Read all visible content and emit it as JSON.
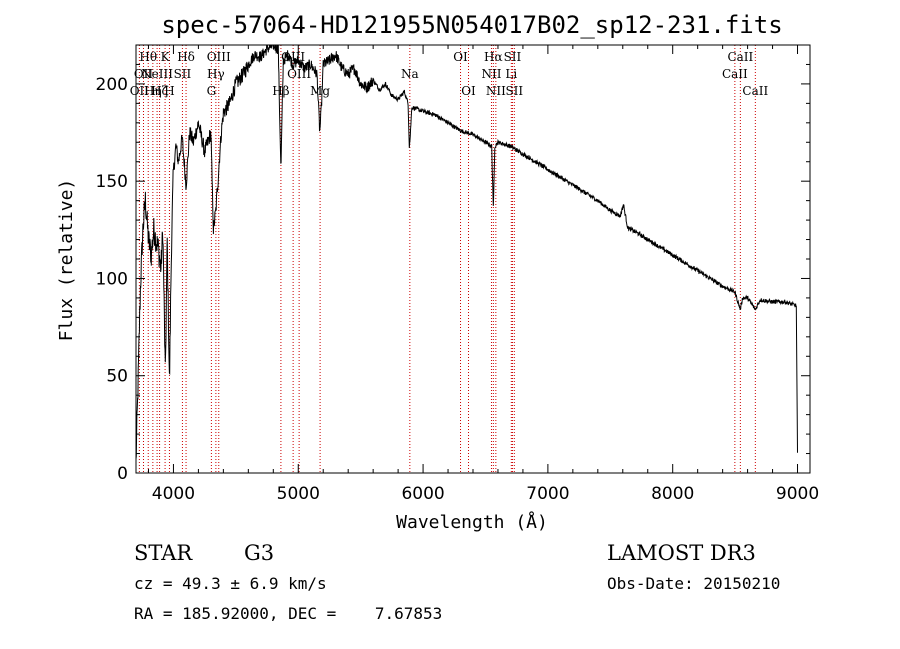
{
  "chart_data": {
    "type": "line",
    "title": "spec-57064-HD121955N054017B02_sp12-231.fits",
    "xlabel": "Wavelength (Å)",
    "ylabel": "Flux (relative)",
    "xlim": [
      3700,
      9100
    ],
    "ylim": [
      0,
      220
    ],
    "x_ticks": [
      4000,
      5000,
      6000,
      7000,
      8000,
      9000
    ],
    "y_ticks": [
      0,
      50,
      100,
      150,
      200
    ],
    "spectrum_anchors": [
      [
        3700,
        5
      ],
      [
        3712,
        35
      ],
      [
        3722,
        60
      ],
      [
        3735,
        95
      ],
      [
        3755,
        125
      ],
      [
        3775,
        140
      ],
      [
        3800,
        120
      ],
      [
        3822,
        112
      ],
      [
        3842,
        125
      ],
      [
        3860,
        120
      ],
      [
        3880,
        115
      ],
      [
        3900,
        105
      ],
      [
        3915,
        125
      ],
      [
        3935,
        50
      ],
      [
        3950,
        120
      ],
      [
        3968,
        45
      ],
      [
        3985,
        120
      ],
      [
        4000,
        155
      ],
      [
        4020,
        168
      ],
      [
        4040,
        160
      ],
      [
        4070,
        172
      ],
      [
        4101,
        148
      ],
      [
        4130,
        175
      ],
      [
        4160,
        170
      ],
      [
        4200,
        180
      ],
      [
        4250,
        165
      ],
      [
        4300,
        175
      ],
      [
        4320,
        125
      ],
      [
        4340,
        135
      ],
      [
        4383,
        175
      ],
      [
        4400,
        185
      ],
      [
        4450,
        190
      ],
      [
        4500,
        200
      ],
      [
        4560,
        205
      ],
      [
        4600,
        210
      ],
      [
        4650,
        215
      ],
      [
        4700,
        214
      ],
      [
        4750,
        218
      ],
      [
        4800,
        220
      ],
      [
        4840,
        218
      ],
      [
        4861,
        155
      ],
      [
        4880,
        212
      ],
      [
        4920,
        215
      ],
      [
        4957,
        210
      ],
      [
        5000,
        212
      ],
      [
        5050,
        208
      ],
      [
        5100,
        210
      ],
      [
        5150,
        205
      ],
      [
        5172,
        175
      ],
      [
        5183,
        185
      ],
      [
        5200,
        210
      ],
      [
        5250,
        212
      ],
      [
        5300,
        215
      ],
      [
        5350,
        208
      ],
      [
        5400,
        205
      ],
      [
        5450,
        208
      ],
      [
        5500,
        200
      ],
      [
        5550,
        198
      ],
      [
        5600,
        202
      ],
      [
        5650,
        197
      ],
      [
        5700,
        200
      ],
      [
        5750,
        194
      ],
      [
        5800,
        192
      ],
      [
        5850,
        196
      ],
      [
        5880,
        190
      ],
      [
        5890,
        168
      ],
      [
        5896,
        172
      ],
      [
        5910,
        188
      ],
      [
        6000,
        186
      ],
      [
        6100,
        184
      ],
      [
        6200,
        180
      ],
      [
        6300,
        176
      ],
      [
        6400,
        174
      ],
      [
        6500,
        170
      ],
      [
        6550,
        168
      ],
      [
        6563,
        135
      ],
      [
        6575,
        168
      ],
      [
        6600,
        170
      ],
      [
        6700,
        168
      ],
      [
        6800,
        164
      ],
      [
        6900,
        160
      ],
      [
        7000,
        156
      ],
      [
        7100,
        152
      ],
      [
        7200,
        148
      ],
      [
        7300,
        144
      ],
      [
        7400,
        140
      ],
      [
        7500,
        135
      ],
      [
        7580,
        132
      ],
      [
        7605,
        138
      ],
      [
        7640,
        126
      ],
      [
        7700,
        124
      ],
      [
        7800,
        120
      ],
      [
        7900,
        116
      ],
      [
        8000,
        112
      ],
      [
        8100,
        108
      ],
      [
        8200,
        104
      ],
      [
        8300,
        100
      ],
      [
        8400,
        96
      ],
      [
        8498,
        93
      ],
      [
        8542,
        84
      ],
      [
        8560,
        90
      ],
      [
        8600,
        90
      ],
      [
        8662,
        84
      ],
      [
        8700,
        89
      ],
      [
        8800,
        88
      ],
      [
        8900,
        88
      ],
      [
        8990,
        86
      ],
      [
        9000,
        10
      ]
    ],
    "spectral_lines": [
      {
        "w": 3727,
        "label": "OII",
        "row": 2
      },
      {
        "w": 3760,
        "label": "OII",
        "row": 1
      },
      {
        "w": 3798,
        "label": "Hθ",
        "row": 0
      },
      {
        "w": 3835,
        "label": "Hη",
        "row": 2
      },
      {
        "w": 3869,
        "label": "NeIII",
        "row": 1
      },
      {
        "w": 3889,
        "label": "Hζ",
        "row": 2
      },
      {
        "w": 3933,
        "label": "K",
        "row": 0
      },
      {
        "w": 3968,
        "label": "H",
        "row": 2
      },
      {
        "w": 4072,
        "label": "SII",
        "row": 1
      },
      {
        "w": 4101,
        "label": "Hδ",
        "row": 0
      },
      {
        "w": 4304,
        "label": "G",
        "row": 2
      },
      {
        "w": 4340,
        "label": "Hγ",
        "row": 1
      },
      {
        "w": 4363,
        "label": "OIII",
        "row": 0
      },
      {
        "w": 4861,
        "label": "Hβ",
        "row": 2
      },
      {
        "w": 4959,
        "label": "OIII",
        "row": 0
      },
      {
        "w": 5007,
        "label": "OIII",
        "row": 1
      },
      {
        "w": 5175,
        "label": "Mg",
        "row": 2
      },
      {
        "w": 5894,
        "label": "Na",
        "row": 1
      },
      {
        "w": 6300,
        "label": "OI",
        "row": 0
      },
      {
        "w": 6364,
        "label": "OI",
        "row": 2
      },
      {
        "w": 6548,
        "label": "NII",
        "row": 1
      },
      {
        "w": 6563,
        "label": "Hα",
        "row": 0
      },
      {
        "w": 6583,
        "label": "NII",
        "row": 2
      },
      {
        "w": 6707,
        "label": "Li",
        "row": 1
      },
      {
        "w": 6716,
        "label": "SII",
        "row": 0
      },
      {
        "w": 6731,
        "label": "SII",
        "row": 2
      },
      {
        "w": 8498,
        "label": "CaII",
        "row": 1
      },
      {
        "w": 8542,
        "label": "CaII",
        "row": 0
      },
      {
        "w": 8662,
        "label": "CaII",
        "row": 2
      }
    ]
  },
  "info": {
    "object_class": "STAR",
    "subclass": "G3",
    "survey": "LAMOST DR3",
    "redshift": "cz = 49.3 ± 6.9 km/s",
    "obs_date": "Obs-Date: 20150210",
    "coords": "RA = 185.92000, DEC =    7.67853"
  },
  "colors": {
    "line": "#000000",
    "marker": "#cc0000",
    "background": "#ffffff"
  }
}
